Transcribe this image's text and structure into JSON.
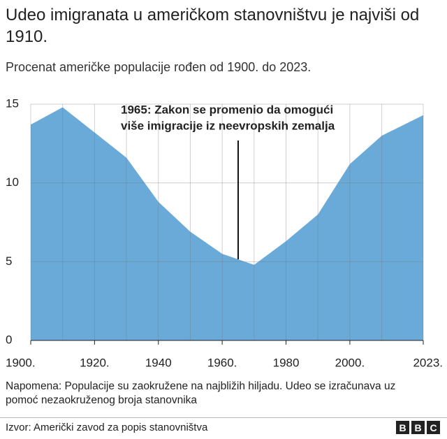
{
  "chart_data": {
    "type": "area",
    "title": "Udeo imigranata u američkom stanovništvu je najviši od 1910.",
    "subtitle": "Procenat američke populacije rođen od 1900. do 2023.",
    "x": [
      1900,
      1910,
      1920,
      1930,
      1940,
      1950,
      1960,
      1970,
      1980,
      1990,
      2000,
      2010,
      2023
    ],
    "values": [
      13.7,
      14.8,
      13.2,
      11.6,
      8.8,
      6.9,
      5.5,
      4.8,
      6.3,
      8.0,
      11.2,
      13.0,
      14.3
    ],
    "color": "#6aaad8",
    "xlim": [
      1900,
      2023
    ],
    "xticks": [
      {
        "value": 1900,
        "label": "1900."
      },
      {
        "value": 1920,
        "label": "1920."
      },
      {
        "value": 1940,
        "label": "1940"
      },
      {
        "value": 1960,
        "label": "1960."
      },
      {
        "value": 1980,
        "label": "1980"
      },
      {
        "value": 2000,
        "label": "2000."
      },
      {
        "value": 2023,
        "label": "2023."
      }
    ],
    "ylim": [
      0,
      15
    ],
    "yticks": [
      0,
      5,
      10,
      15
    ],
    "grid": true,
    "annotation": {
      "x": 1965,
      "lines": [
        "1965: Zakon se promenio da omogući",
        "više imigracije iz neevropskih zemalja"
      ]
    },
    "note": "Napomena: Populacije su zaokružene na najbližih hiljadu. Udeo se izračunava uz pomoć nezaokruženog broja stanovnika",
    "source": "Izvor: Američki zavod za popis stanovništva"
  }
}
